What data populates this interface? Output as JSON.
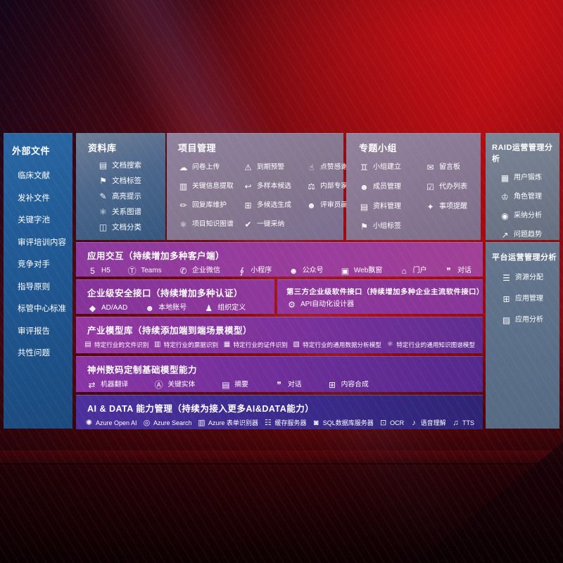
{
  "colors": {
    "bg_red": "#ae0d12",
    "sidebar_blue": "#215a95",
    "panel_steel_blue": "#4c678c",
    "panel_mauve": "#86788f",
    "panel_gray": "#6e7889",
    "band_purple": "#9a3d9c",
    "band_indigo": "#3b2b8b",
    "text": "#ffffff"
  },
  "sidebar": {
    "title": "外部文件",
    "items": [
      {
        "label": "临床文献",
        "name": "sidebar-item-clinical-literature"
      },
      {
        "label": "发补文件",
        "name": "sidebar-item-supplement-files"
      },
      {
        "label": "关键字池",
        "name": "sidebar-item-keyword-pool"
      },
      {
        "label": "审评培训内容",
        "name": "sidebar-item-review-training"
      },
      {
        "label": "竞争对手",
        "name": "sidebar-item-competitors"
      },
      {
        "label": "指导原则",
        "name": "sidebar-item-guidelines"
      },
      {
        "label": "标管中心标准",
        "name": "sidebar-item-standards-center"
      },
      {
        "label": "审评报告",
        "name": "sidebar-item-review-reports"
      },
      {
        "label": "共性问题",
        "name": "sidebar-item-common-issues"
      }
    ]
  },
  "panels": {
    "repository": {
      "title": "资料库",
      "items": [
        {
          "icon": "▤",
          "icon_name": "doc-search-icon",
          "label": "文档搜索",
          "name": "item-doc-search"
        },
        {
          "icon": "⚑",
          "icon_name": "doc-tag-icon",
          "label": "文档标签",
          "name": "item-doc-tags"
        },
        {
          "icon": "✎",
          "icon_name": "highlight-pen-icon",
          "label": "高亮提示",
          "name": "item-highlight-tip"
        },
        {
          "icon": "⚛",
          "icon_name": "relation-graph-icon",
          "label": "关系图谱",
          "name": "item-relation-graph"
        },
        {
          "icon": "◫",
          "icon_name": "doc-classify-icon",
          "label": "文档分类",
          "name": "item-doc-classify"
        }
      ]
    },
    "project": {
      "title": "项目管理",
      "items": [
        {
          "icon": "☁",
          "icon_name": "cloud-upload-icon",
          "label": "问卷上传",
          "name": "item-survey-upload"
        },
        {
          "icon": "⚠",
          "icon_name": "alarm-icon",
          "label": "到期预警",
          "name": "item-due-warning"
        },
        {
          "icon": "☝",
          "icon_name": "thumbs-up-icon",
          "label": "点赞感谢",
          "name": "item-like-thanks"
        },
        {
          "icon": "▥",
          "icon_name": "extract-card-icon",
          "label": "关键信息提取",
          "name": "item-key-info-extract"
        },
        {
          "icon": "↩",
          "icon_name": "reply-arrow-icon",
          "label": "多样本候选",
          "name": "item-multi-sample-candidate"
        },
        {
          "icon": "⚖",
          "icon_name": "ranking-icon",
          "label": "内部专家排名",
          "name": "item-internal-expert-ranking"
        },
        {
          "icon": "✏",
          "icon_name": "edit-pen-icon",
          "label": "回复库维护",
          "name": "item-reply-lib-maintain"
        },
        {
          "icon": "⊞",
          "icon_name": "generate-grid-icon",
          "label": "多候选生成",
          "name": "item-multi-candidate-generate"
        },
        {
          "icon": "☻",
          "icon_name": "person-portrait-icon",
          "label": "评审员画像",
          "name": "item-reviewer-profile"
        },
        {
          "icon": "⚛",
          "icon_name": "knowledge-graph-icon",
          "label": "项目知识图谱",
          "name": "item-project-knowledge-graph"
        },
        {
          "icon": "✔",
          "icon_name": "adopt-check-icon",
          "label": "一键采纳",
          "name": "item-one-click-adopt"
        }
      ]
    },
    "topic_groups": {
      "title": "专题小组",
      "items": [
        {
          "icon": "♊",
          "icon_name": "group-people-icon",
          "label": "小组建立",
          "name": "item-group-create"
        },
        {
          "icon": "✉",
          "icon_name": "message-board-icon",
          "label": "留言板",
          "name": "item-message-board"
        },
        {
          "icon": "☻",
          "icon_name": "member-icon",
          "label": "成员管理",
          "name": "item-member-mgmt"
        },
        {
          "icon": "☑",
          "icon_name": "todo-clipboard-icon",
          "label": "代办列表",
          "name": "item-todo-list"
        },
        {
          "icon": "▤",
          "icon_name": "material-book-icon",
          "label": "资料管理",
          "name": "item-material-mgmt"
        },
        {
          "icon": "✦",
          "icon_name": "reminder-bell-icon",
          "label": "事项提醒",
          "name": "item-event-reminder"
        },
        {
          "icon": "⚑",
          "icon_name": "group-tag-icon",
          "label": "小组标签",
          "name": "item-group-tags"
        }
      ]
    },
    "raid_analysis": {
      "title": "RAID运营管理分析",
      "items": [
        {
          "icon": "▦",
          "icon_name": "user-card-icon",
          "label": "用户锻炼",
          "name": "item-user-training"
        },
        {
          "icon": "♔",
          "icon_name": "role-icon",
          "label": "角色管理",
          "name": "item-role-mgmt"
        },
        {
          "icon": "◉",
          "icon_name": "qa-chat-icon",
          "label": "采纳分析",
          "name": "item-adoption-analysis"
        },
        {
          "icon": "↗",
          "icon_name": "trend-chart-icon",
          "label": "问题趋势",
          "name": "item-issue-trend"
        }
      ]
    },
    "platform_analysis": {
      "title": "平台运营管理分析",
      "items": [
        {
          "icon": "☰",
          "icon_name": "resource-list-icon",
          "label": "资源分配",
          "name": "item-resource-alloc"
        },
        {
          "icon": "⊞",
          "icon_name": "apps-grid-icon",
          "label": "应用管理",
          "name": "item-app-mgmt"
        },
        {
          "icon": "▨",
          "icon_name": "app-chart-icon",
          "label": "应用分析",
          "name": "item-app-analysis"
        }
      ]
    },
    "app_interaction": {
      "title": "应用交互（持续增加多种客户端）",
      "items": [
        {
          "icon": "5",
          "icon_name": "html5-icon",
          "label": "H5",
          "name": "item-h5"
        },
        {
          "icon": "Ⓣ",
          "icon_name": "teams-icon",
          "label": "Teams",
          "name": "item-teams"
        },
        {
          "icon": "✆",
          "icon_name": "wecom-chat-icon",
          "label": "企业微信",
          "name": "item-wecom"
        },
        {
          "icon": "∮",
          "icon_name": "mini-program-icon",
          "label": "小程序",
          "name": "item-mini-program"
        },
        {
          "icon": "☻",
          "icon_name": "official-account-icon",
          "label": "公众号",
          "name": "item-official-account"
        },
        {
          "icon": "▣",
          "icon_name": "web-window-icon",
          "label": "Web飘窗",
          "name": "item-web-popup"
        },
        {
          "icon": "⌂",
          "icon_name": "portal-icon",
          "label": "门户",
          "name": "item-portal"
        },
        {
          "icon": "❞",
          "icon_name": "dialog-chat-icon",
          "label": "对话",
          "name": "item-dialog"
        }
      ]
    },
    "security_api": {
      "title": "企业级安全接口（持续增加多种认证）",
      "items": [
        {
          "icon": "◆",
          "icon_name": "azure-ad-icon",
          "label": "AD/AAD",
          "name": "item-ad-aad"
        },
        {
          "icon": "☻",
          "icon_name": "local-account-icon",
          "label": "本地账号",
          "name": "item-local-account"
        },
        {
          "icon": "♟",
          "icon_name": "org-people-icon",
          "label": "组织定义",
          "name": "item-org-definition"
        }
      ]
    },
    "third_party_api": {
      "title": "第三方企业级软件接口（持续增加多种企业主流软件接口）",
      "items": [
        {
          "icon": "⚙",
          "icon_name": "api-gear-icon",
          "label": "API自动化设计器",
          "name": "item-api-auto-designer"
        }
      ]
    },
    "industry_models": {
      "title": "产业模型库（持续添加端到端场景模型）",
      "items": [
        {
          "icon": "▤",
          "icon_name": "file-recognition-icon",
          "label": "特定行业的文件识别",
          "name": "item-industry-file-recognition"
        },
        {
          "icon": "▥",
          "icon_name": "receipt-recognition-icon",
          "label": "特定行业的票据识别",
          "name": "item-industry-receipt-recognition"
        },
        {
          "icon": "▦",
          "icon_name": "id-card-recognition-icon",
          "label": "特定行业的证件识别",
          "name": "item-industry-id-recognition"
        },
        {
          "icon": "▧",
          "icon_name": "data-analysis-model-icon",
          "label": "特定行业的通用数据分析模型",
          "name": "item-industry-data-analysis-model"
        },
        {
          "icon": "⚛",
          "icon_name": "knowledge-graph-model-icon",
          "label": "特定行业的通用知识图谱模型",
          "name": "item-industry-knowledge-graph-model"
        }
      ]
    },
    "base_models": {
      "title": "神州数码定制基础模型能力",
      "items": [
        {
          "icon": "⇄",
          "icon_name": "translate-icon",
          "label": "机器翻译",
          "name": "item-machine-translation"
        },
        {
          "icon": "Ⓐ",
          "icon_name": "entity-shield-icon",
          "label": "关键实体",
          "name": "item-key-entity"
        },
        {
          "icon": "▤",
          "icon_name": "summary-doc-icon",
          "label": "摘要",
          "name": "item-summary"
        },
        {
          "icon": "❞",
          "icon_name": "dialog-bubble-icon",
          "label": "对话",
          "name": "item-dialog-model"
        },
        {
          "icon": "⊞",
          "icon_name": "content-synthesis-icon",
          "label": "内容合成",
          "name": "item-content-synthesis"
        }
      ]
    },
    "ai_data": {
      "title": "AI & DATA 能力管理（持续为接入更多AI&DATA能力）",
      "items": [
        {
          "icon": "✺",
          "icon_name": "openai-icon",
          "label": "Azure Open AI",
          "name": "item-azure-open-ai"
        },
        {
          "icon": "◎",
          "icon_name": "search-doc-icon",
          "label": "Azure Search",
          "name": "item-azure-search"
        },
        {
          "icon": "▥",
          "icon_name": "form-recognizer-icon",
          "label": "Azure 表单识别器",
          "name": "item-azure-form-recognizer"
        },
        {
          "icon": "☷",
          "icon_name": "cache-server-icon",
          "label": "缓存服务器",
          "name": "item-cache-server"
        },
        {
          "icon": "◙",
          "icon_name": "sql-database-icon",
          "label": "SQL数据库服务器",
          "name": "item-sql-db-server"
        },
        {
          "icon": "⊡",
          "icon_name": "ocr-icon",
          "label": "OCR",
          "name": "item-ocr"
        },
        {
          "icon": "♪",
          "icon_name": "speech-icon",
          "label": "语音理解",
          "name": "item-speech-understanding"
        },
        {
          "icon": "♫",
          "icon_name": "tts-icon",
          "label": "TTS",
          "name": "item-tts"
        }
      ]
    }
  }
}
